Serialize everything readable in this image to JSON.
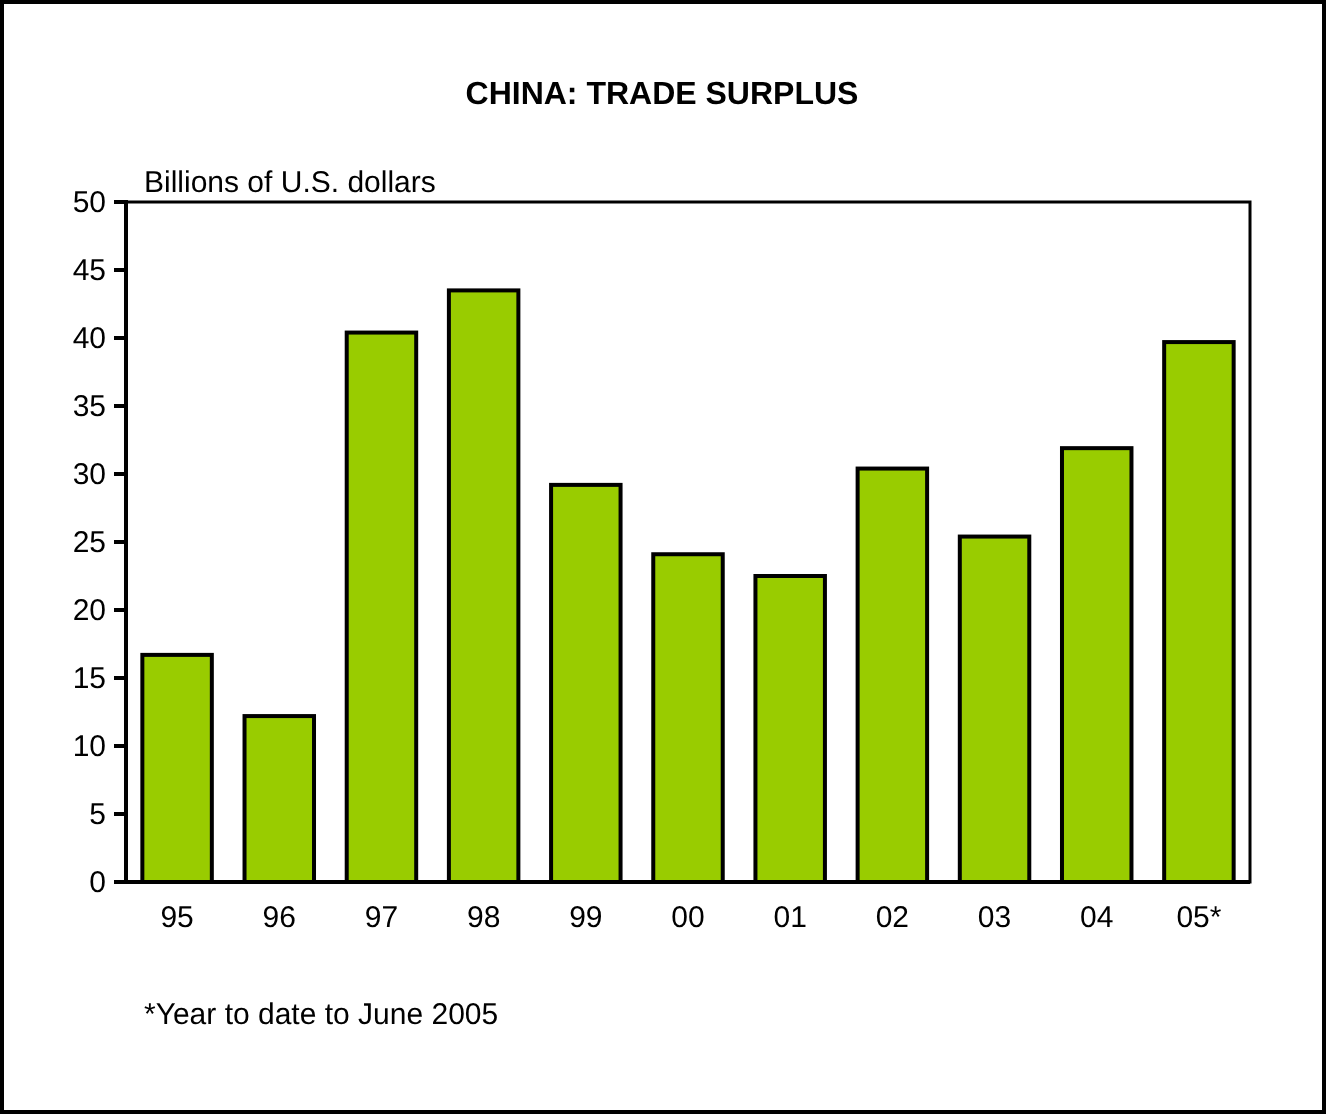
{
  "chart_data": {
    "type": "bar",
    "title": "CHINA: TRADE SURPLUS",
    "ylabel": "Billions of U.S. dollars",
    "categories": [
      "95",
      "96",
      "97",
      "98",
      "99",
      "00",
      "01",
      "02",
      "03",
      "04",
      "05*"
    ],
    "values": [
      16.7,
      12.2,
      40.4,
      43.5,
      29.2,
      24.1,
      22.5,
      30.4,
      25.4,
      31.9,
      39.7
    ],
    "color": "#99cc00",
    "ylim": [
      0,
      50
    ],
    "yticks": [
      0,
      5,
      10,
      15,
      20,
      25,
      30,
      35,
      40,
      45,
      50
    ],
    "grid": false,
    "annotations": [
      "*Year to date to June 2005"
    ]
  }
}
